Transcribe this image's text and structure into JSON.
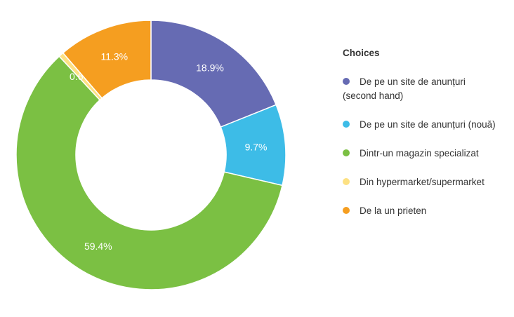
{
  "chart_data": {
    "type": "pie",
    "donut": true,
    "legend_title": "Choices",
    "legend_placement": "right",
    "slices": [
      {
        "label": "De pe un site de anunțuri (second hand)",
        "value": 18.9,
        "display": "18.9%",
        "color": "#666bb3"
      },
      {
        "label": "De pe un site de anunțuri (nouă)",
        "value": 9.7,
        "display": "9.7%",
        "color": "#3dbce7"
      },
      {
        "label": "Dintr-un magazin specializat",
        "value": 59.4,
        "display": "59.4%",
        "color": "#7bc043"
      },
      {
        "label": "Din hypermarket/supermarket",
        "value": 0.6,
        "display": "0.6%",
        "color": "#fde183"
      },
      {
        "label": "De la un prieten",
        "value": 11.3,
        "display": "11.3%",
        "color": "#f59e20"
      }
    ]
  }
}
